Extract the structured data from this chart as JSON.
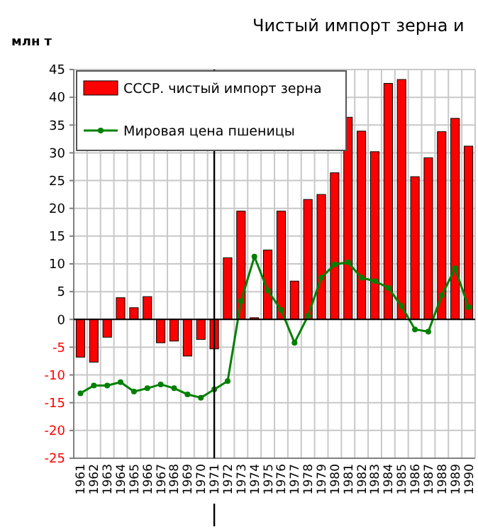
{
  "chart_data": {
    "type": "bar",
    "title": "Чистый импорт зерна и",
    "ylabel": "млн т",
    "categories": [
      "1961",
      "1962",
      "1963",
      "1964",
      "1965",
      "1966",
      "1967",
      "1968",
      "1969",
      "1970",
      "1971",
      "1972",
      "1973",
      "1974",
      "1975",
      "1976",
      "1977",
      "1978",
      "1979",
      "1980",
      "1981",
      "1982",
      "1983",
      "1984",
      "1985",
      "1986",
      "1987",
      "1988",
      "1989",
      "1990"
    ],
    "series": [
      {
        "name": "СССР. чистый импорт зерна",
        "color": "#ff0000",
        "values": [
          -6.8,
          -7.7,
          -3.2,
          3.9,
          2.1,
          4.1,
          -4.2,
          -3.9,
          -6.6,
          -3.6,
          -5.3,
          11.1,
          19.5,
          0.3,
          12.5,
          19.5,
          6.9,
          21.6,
          22.5,
          26.4,
          36.4,
          33.9,
          30.2,
          42.5,
          43.2,
          25.7,
          29.1,
          33.8,
          36.2,
          31.2
        ]
      },
      {
        "name": "Мировая цена пшеницы",
        "type": "line",
        "color": "#008000",
        "marker": "circle",
        "values": [
          -13.3,
          -11.9,
          -11.9,
          -11.3,
          -13.0,
          -12.4,
          -11.7,
          -12.4,
          -13.5,
          -14.1,
          -12.6,
          -11.1,
          3.3,
          11.3,
          5.2,
          1.7,
          -4.2,
          0.6,
          7.5,
          9.9,
          10.3,
          7.5,
          6.9,
          5.7,
          2.4,
          -1.8,
          -2.2,
          4.3,
          9.2,
          2.2
        ]
      }
    ],
    "ylim": [
      -25,
      45
    ],
    "yticks": [
      -25,
      -20,
      -15,
      -10,
      -5,
      0,
      5,
      10,
      15,
      20,
      25,
      30,
      35,
      40,
      45
    ],
    "grid": true,
    "legend": "top left",
    "ref_lines": [
      {
        "axis": "x",
        "value": "1971",
        "color": "#000000"
      }
    ]
  }
}
